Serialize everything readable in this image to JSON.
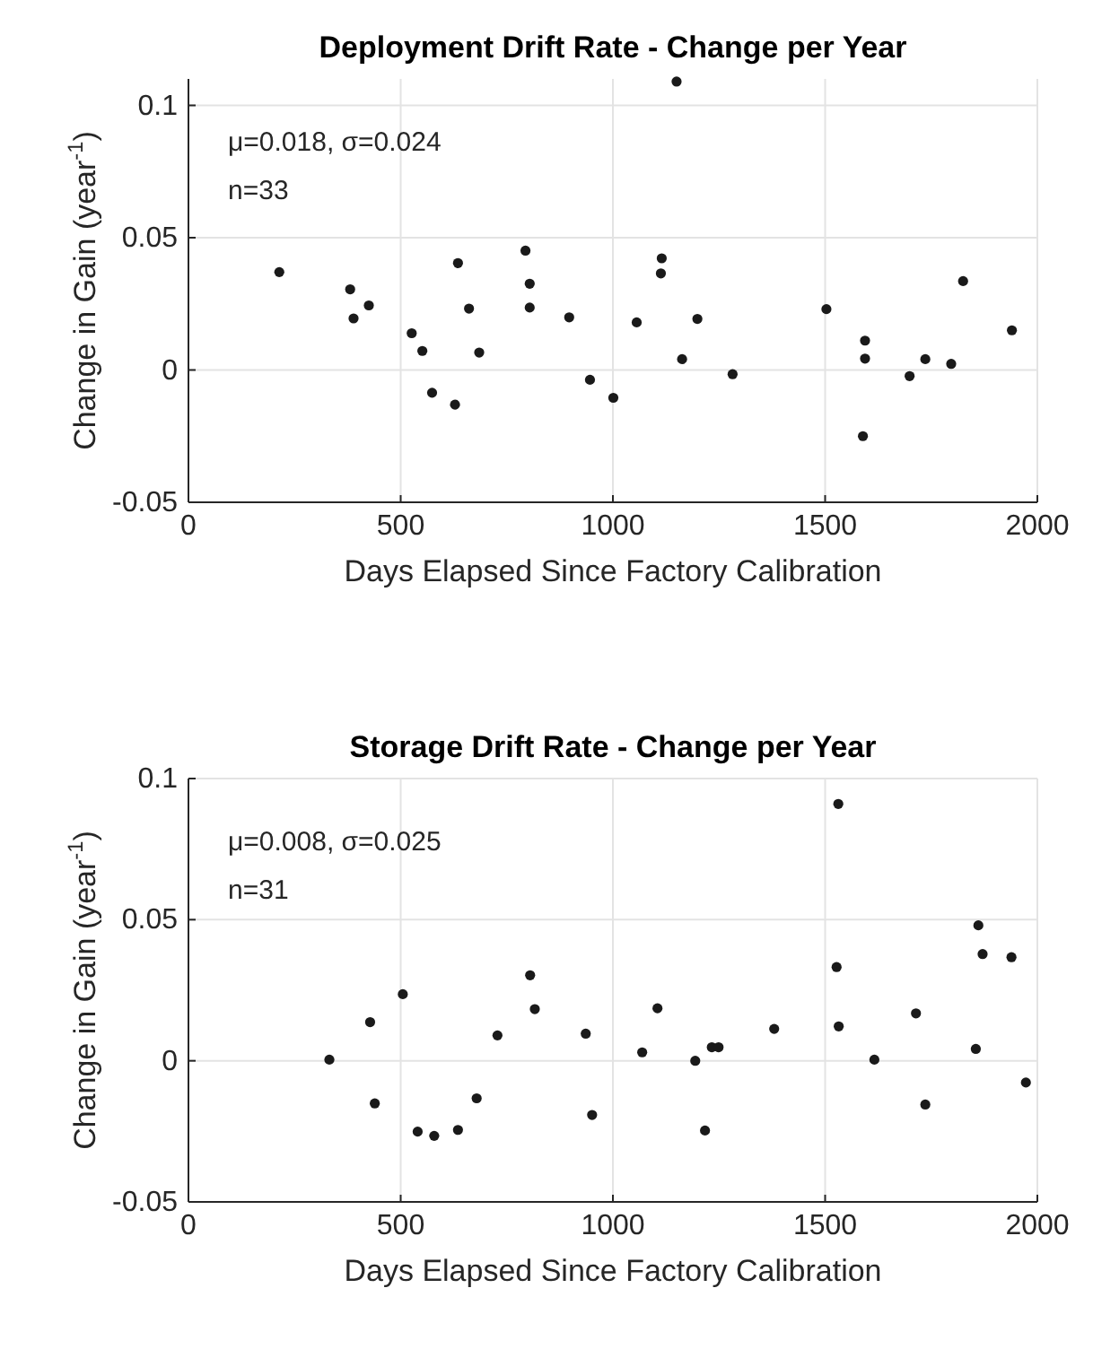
{
  "chart_data": [
    {
      "type": "scatter",
      "title": "Deployment Drift Rate - Change per Year",
      "xlabel": "Days Elapsed Since Factory Calibration",
      "ylabel": "Change in Gain (year$^{-1}$)",
      "annotations": [
        "μ=0.018, σ=0.024",
        "n=33"
      ],
      "x": [
        214,
        381,
        389,
        425,
        526,
        551,
        574,
        635,
        661,
        628,
        685,
        794,
        804,
        804,
        897,
        946,
        1001,
        1056,
        1115,
        1113,
        1150,
        1163,
        1199,
        1282,
        1503,
        1594,
        1594,
        1589,
        1699,
        1736,
        1797,
        1825,
        1940
      ],
      "series": [
        {
          "color": "#1a1a1a",
          "values": [
            0.037,
            0.0305,
            0.0195,
            0.0244,
            0.0139,
            0.0072,
            -0.0086,
            0.0404,
            0.0232,
            -0.0131,
            0.0066,
            0.0451,
            0.0326,
            0.0236,
            0.0199,
            -0.0037,
            -0.0105,
            0.018,
            0.0422,
            0.0365,
            0.109,
            0.0041,
            0.0193,
            -0.0016,
            0.023,
            0.0111,
            0.0043,
            -0.025,
            -0.0023,
            0.0041,
            0.0023,
            0.0336,
            0.015
          ]
        }
      ],
      "xlim": [
        0,
        2000
      ],
      "xticks": [
        0,
        500,
        1000,
        1500,
        2000
      ],
      "ylim": [
        -0.05,
        0.11
      ],
      "yticks": [
        -0.05,
        0,
        0.05,
        0.1
      ],
      "grid": true,
      "marker": "circle"
    },
    {
      "type": "scatter",
      "title": "Storage Drift Rate - Change per Year",
      "xlabel": "Days Elapsed Since Factory Calibration",
      "ylabel": "Change in Gain (year$^{-1}$)",
      "annotations": [
        "μ=0.008, σ=0.025",
        "n=31"
      ],
      "x": [
        332,
        428,
        439,
        505,
        540,
        579,
        635,
        679,
        728,
        805,
        816,
        936,
        951,
        1069,
        1105,
        1194,
        1217,
        1233,
        1249,
        1380,
        1531,
        1527,
        1532,
        1616,
        1714,
        1736,
        1855,
        1861,
        1871,
        1939,
        1973
      ],
      "series": [
        {
          "color": "#1a1a1a",
          "values": [
            0.0004,
            0.0137,
            -0.0151,
            0.0236,
            -0.0251,
            -0.0266,
            -0.0245,
            -0.0133,
            0.009,
            0.0303,
            0.0183,
            0.0096,
            -0.0192,
            0.003,
            0.0186,
            0,
            -0.0247,
            0.0048,
            0.0048,
            0.0113,
            0.091,
            0.0332,
            0.0122,
            0.0004,
            0.0168,
            -0.0155,
            0.0042,
            0.048,
            0.0378,
            0.0367,
            -0.0077
          ]
        }
      ],
      "xlim": [
        0,
        2000
      ],
      "xticks": [
        0,
        500,
        1000,
        1500,
        2000
      ],
      "ylim": [
        -0.05,
        0.1
      ],
      "yticks": [
        -0.05,
        0,
        0.05,
        0.1
      ],
      "grid": true,
      "marker": "circle"
    }
  ]
}
